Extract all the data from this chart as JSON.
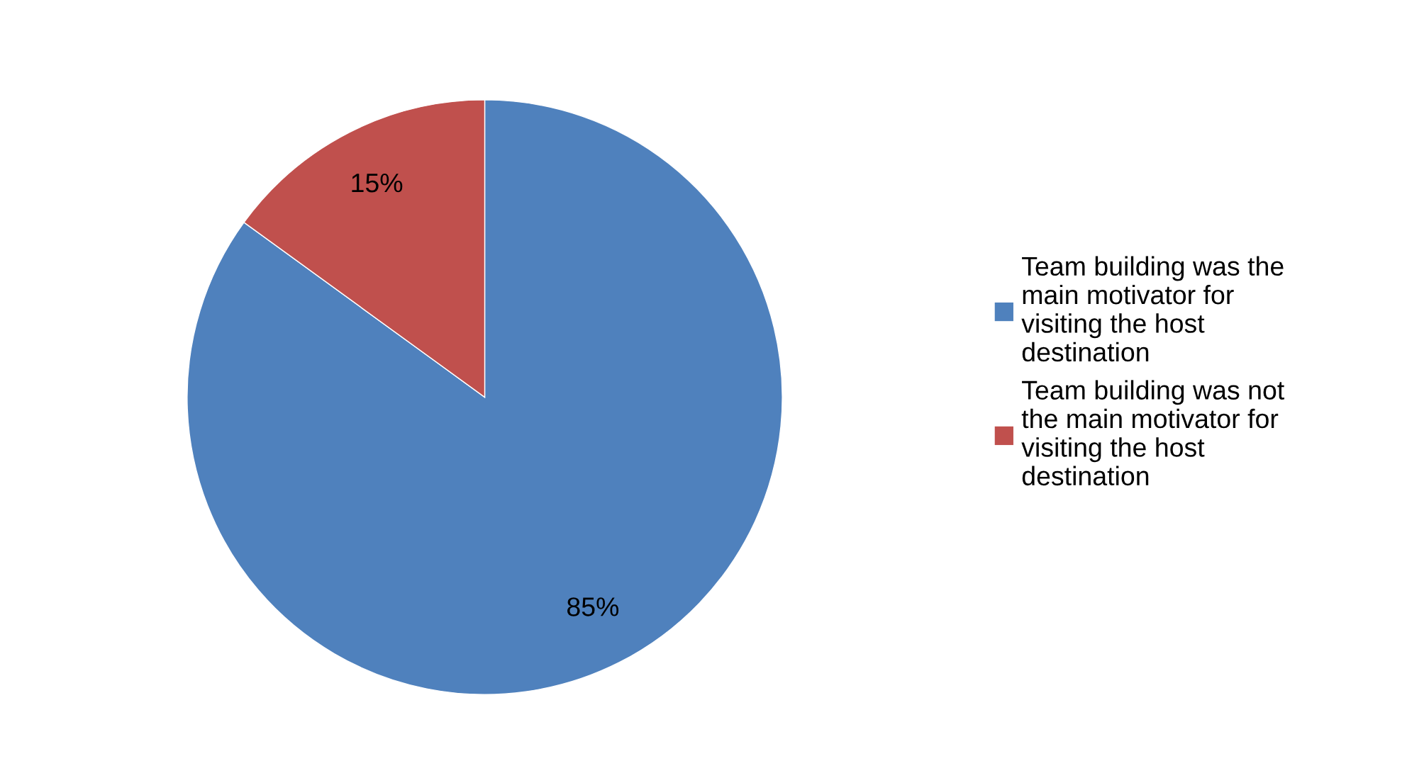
{
  "chart_data": {
    "type": "pie",
    "categories": [
      "Team building was the main motivator for visiting the host destination",
      "Team building was not the main motivator for visiting the host destination"
    ],
    "values": [
      85,
      15
    ],
    "colors": [
      "#4f81bd",
      "#c0504d"
    ],
    "value_labels": [
      "85%",
      "15%"
    ],
    "legend": "right"
  }
}
